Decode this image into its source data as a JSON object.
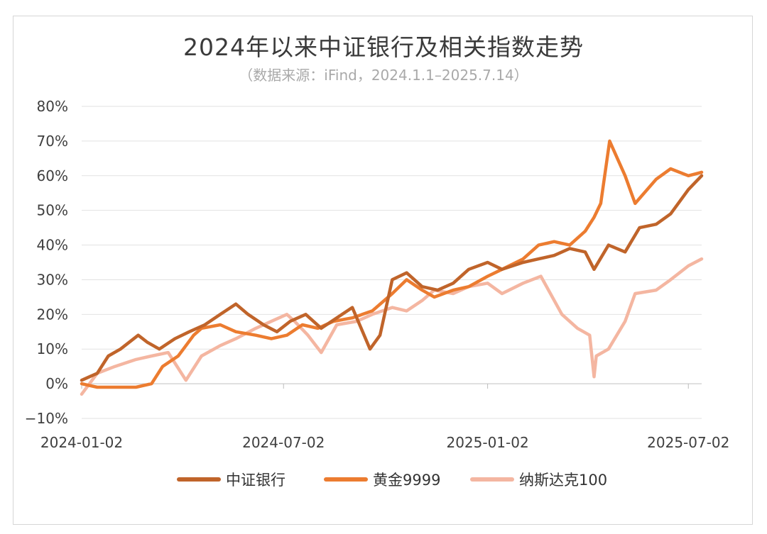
{
  "chart_data": {
    "type": "line",
    "title": "2024年以来中证银行及相关指数走势",
    "subtitle": "（数据来源：iFind，2024.1.1–2025.7.14）",
    "xlabel": "",
    "ylabel": "",
    "x_range": [
      "2024-01-02",
      "2025-07-14"
    ],
    "x_ticks": [
      "2024-01-02",
      "2024-07-02",
      "2025-01-02",
      "2025-07-02"
    ],
    "ylim": [
      -10,
      80
    ],
    "y_ticks": [
      "80%",
      "70%",
      "60%",
      "50%",
      "40%",
      "30%",
      "20%",
      "10%",
      "0%",
      "−10%"
    ],
    "grid": "horizontal",
    "legend": "bottom",
    "series": [
      {
        "name": "中证银行",
        "color": "#c0642a",
        "x": [
          "2024-01-02",
          "2024-01-16",
          "2024-01-26",
          "2024-02-06",
          "2024-02-22",
          "2024-03-01",
          "2024-03-12",
          "2024-03-26",
          "2024-04-08",
          "2024-04-22",
          "2024-05-06",
          "2024-05-20",
          "2024-05-31",
          "2024-06-14",
          "2024-06-26",
          "2024-07-08",
          "2024-07-22",
          "2024-08-05",
          "2024-08-19",
          "2024-09-02",
          "2024-09-18",
          "2024-09-27",
          "2024-10-08",
          "2024-10-21",
          "2024-11-04",
          "2024-11-18",
          "2024-12-02",
          "2024-12-16",
          "2025-01-02",
          "2025-01-15",
          "2025-02-03",
          "2025-02-17",
          "2025-03-03",
          "2025-03-17",
          "2025-03-31",
          "2025-04-08",
          "2025-04-21",
          "2025-05-06",
          "2025-05-19",
          "2025-06-03",
          "2025-06-16",
          "2025-07-02",
          "2025-07-14"
        ],
        "values": [
          1,
          3,
          8,
          10,
          14,
          12,
          10,
          13,
          15,
          17,
          20,
          23,
          20,
          17,
          15,
          18,
          20,
          16,
          19,
          22,
          10,
          14,
          30,
          32,
          28,
          27,
          29,
          33,
          35,
          33,
          35,
          36,
          37,
          39,
          38,
          33,
          40,
          38,
          45,
          46,
          49,
          56,
          60
        ]
      },
      {
        "name": "黄金9999",
        "color": "#ec7c30",
        "x": [
          "2024-01-02",
          "2024-01-16",
          "2024-02-01",
          "2024-02-20",
          "2024-03-05",
          "2024-03-15",
          "2024-03-29",
          "2024-04-12",
          "2024-04-19",
          "2024-05-06",
          "2024-05-20",
          "2024-06-07",
          "2024-06-21",
          "2024-07-05",
          "2024-07-19",
          "2024-08-02",
          "2024-08-16",
          "2024-09-02",
          "2024-09-20",
          "2024-10-08",
          "2024-10-21",
          "2024-11-04",
          "2024-11-15",
          "2024-12-02",
          "2024-12-16",
          "2025-01-02",
          "2025-01-15",
          "2025-02-03",
          "2025-02-17",
          "2025-03-03",
          "2025-03-17",
          "2025-03-31",
          "2025-04-08",
          "2025-04-14",
          "2025-04-22",
          "2025-05-06",
          "2025-05-15",
          "2025-06-03",
          "2025-06-16",
          "2025-07-02",
          "2025-07-14"
        ],
        "values": [
          0,
          -1,
          -1,
          -1,
          0,
          5,
          8,
          14,
          16,
          17,
          15,
          14,
          13,
          14,
          17,
          16,
          18,
          19,
          21,
          26,
          30,
          27,
          25,
          27,
          28,
          31,
          33,
          36,
          40,
          41,
          40,
          44,
          48,
          52,
          70,
          60,
          52,
          59,
          62,
          60,
          61
        ]
      },
      {
        "name": "纳斯达克100",
        "color": "#f4b6a1",
        "x": [
          "2024-01-02",
          "2024-01-16",
          "2024-02-01",
          "2024-02-20",
          "2024-03-05",
          "2024-03-20",
          "2024-04-05",
          "2024-04-19",
          "2024-05-06",
          "2024-05-20",
          "2024-06-07",
          "2024-06-21",
          "2024-07-05",
          "2024-07-12",
          "2024-07-24",
          "2024-08-05",
          "2024-08-19",
          "2024-09-06",
          "2024-09-20",
          "2024-10-08",
          "2024-10-21",
          "2024-11-04",
          "2024-11-15",
          "2024-12-02",
          "2024-12-16",
          "2025-01-02",
          "2025-01-15",
          "2025-02-03",
          "2025-02-19",
          "2025-03-10",
          "2025-03-24",
          "2025-04-04",
          "2025-04-08",
          "2025-04-10",
          "2025-04-21",
          "2025-05-06",
          "2025-05-15",
          "2025-06-03",
          "2025-06-16",
          "2025-07-02",
          "2025-07-14"
        ],
        "values": [
          -3,
          3,
          5,
          7,
          8,
          9,
          1,
          8,
          11,
          13,
          16,
          18,
          20,
          18,
          14,
          9,
          17,
          18,
          20,
          22,
          21,
          24,
          27,
          26,
          28,
          29,
          26,
          29,
          31,
          20,
          16,
          14,
          2,
          8,
          10,
          18,
          26,
          27,
          30,
          34,
          36
        ]
      }
    ]
  }
}
